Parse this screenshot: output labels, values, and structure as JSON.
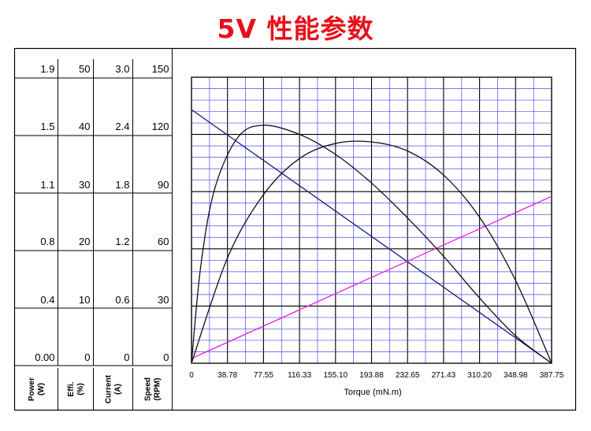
{
  "title": "5V 性能参数",
  "chart_data": {
    "type": "line",
    "title": "5V 性能参数",
    "xlabel": "Torque (mN.m)",
    "xlim": [
      0,
      387.75
    ],
    "x_ticks": [
      "0",
      "38.78",
      "77.55",
      "116.33",
      "155.10",
      "193.88",
      "232.65",
      "271.43",
      "310.20",
      "348.98",
      "387.75"
    ],
    "axes": [
      {
        "label": "Power",
        "unit": "(W)",
        "ticks": [
          "0.00",
          "0.4",
          "0.8",
          "1.1",
          "1.5",
          "1.9"
        ],
        "range": [
          0,
          1.9
        ]
      },
      {
        "label": "Effi.",
        "unit": "(%)",
        "ticks": [
          "0",
          "10",
          "20",
          "30",
          "40",
          "50"
        ],
        "range": [
          0,
          50
        ]
      },
      {
        "label": "Current",
        "unit": "(A)",
        "ticks": [
          "0",
          "0.6",
          "1.2",
          "1.8",
          "2.4",
          "3.0"
        ],
        "range": [
          0,
          3.0
        ]
      },
      {
        "label": "Speed",
        "unit": "(RPM)",
        "ticks": [
          "0",
          "30",
          "60",
          "90",
          "120",
          "150"
        ],
        "range": [
          0,
          150
        ]
      }
    ],
    "series": [
      {
        "axis": 3,
        "color": "#1a1a80",
        "points": [
          [
            0,
            133
          ],
          [
            387.75,
            0
          ]
        ]
      },
      {
        "axis": 2,
        "color": "#e020e0",
        "points": [
          [
            0,
            0.05
          ],
          [
            387.75,
            1.75
          ]
        ]
      },
      {
        "axis": 1,
        "color": "#111111",
        "points": [
          [
            0,
            0
          ],
          [
            10,
            17
          ],
          [
            25,
            30.5
          ],
          [
            50,
            39.5
          ],
          [
            77.55,
            41.6
          ],
          [
            116.33,
            40
          ],
          [
            155.1,
            36.5
          ],
          [
            193.88,
            31.5
          ],
          [
            232.65,
            25.4
          ],
          [
            271.43,
            18.7
          ],
          [
            310.2,
            11.4
          ],
          [
            348.98,
            4.8
          ],
          [
            387.75,
            0
          ]
        ]
      },
      {
        "axis": 0,
        "color": "#111111",
        "points": [
          [
            0,
            0
          ],
          [
            38.78,
            0.7
          ],
          [
            77.55,
            1.12
          ],
          [
            116.33,
            1.36
          ],
          [
            155.1,
            1.46
          ],
          [
            193.88,
            1.47
          ],
          [
            232.65,
            1.41
          ],
          [
            271.43,
            1.25
          ],
          [
            310.2,
            0.97
          ],
          [
            348.98,
            0.55
          ],
          [
            387.75,
            0
          ]
        ]
      }
    ]
  }
}
